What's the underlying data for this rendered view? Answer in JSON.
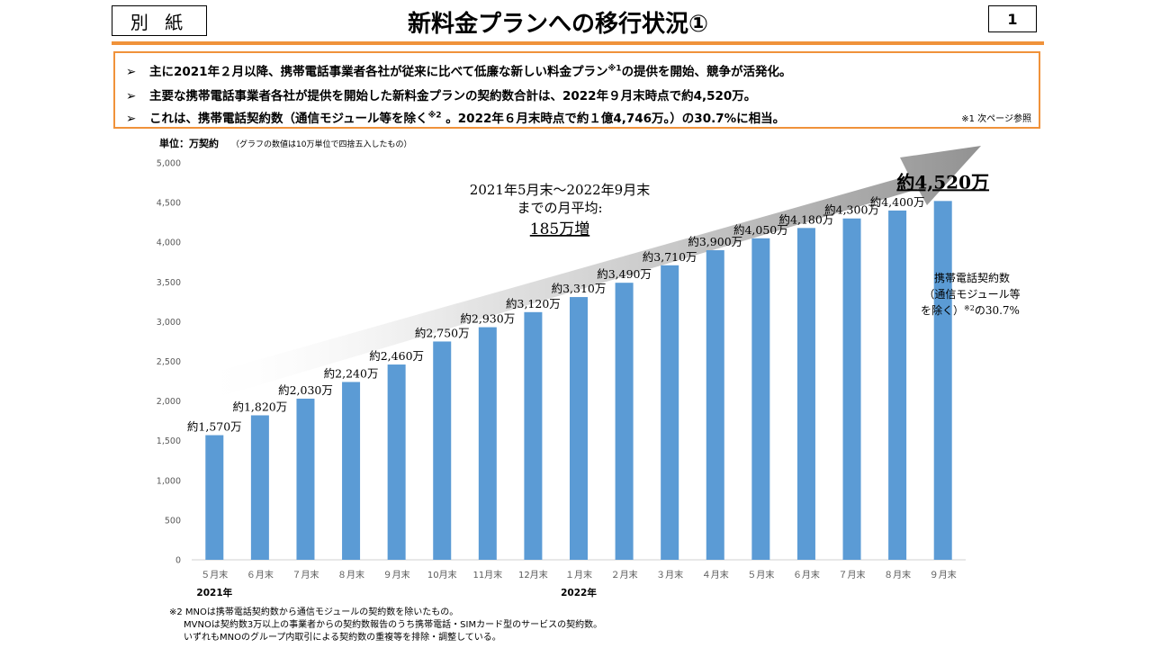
{
  "header": {
    "tag": "別 紙",
    "title": "新料金プランへの移行状況①",
    "page_number": "1"
  },
  "bullets": [
    {
      "text": "主に2021年２月以降、携帯電話事業者各社が従来に比べて低廉な新しい料金プラン",
      "sup": "※1",
      "tail": "の提供を開始、競争が活発化。"
    },
    {
      "text": "主要な携帯電話事業者各社が提供を開始した新料金プランの契約数合計は、2022年９月末時点で約4,520万。",
      "sup": "",
      "tail": ""
    },
    {
      "text": "これは、携帯電話契約数（通信モジュール等を除く",
      "sup": "※2",
      "tail": " 。2022年６月末時点で約１億4,746万。）の30.7%に相当。"
    }
  ],
  "bullet_marker": "➢",
  "note_ref": "※1  次ページ参照",
  "chart_data": {
    "type": "bar",
    "unit_label": "単位：万契約",
    "unit_note": "（グラフの数値は10万単位で四捨五入したもの）",
    "categories": [
      "５月末",
      "６月末",
      "７月末",
      "８月末",
      "９月末",
      "10月末",
      "11月末",
      "12月末",
      "１月末",
      "２月末",
      "３月末",
      "４月末",
      "５月末",
      "６月末",
      "７月末",
      "８月末",
      "９月末"
    ],
    "values": [
      1570,
      1820,
      2030,
      2240,
      2460,
      2750,
      2930,
      3120,
      3310,
      3490,
      3710,
      3900,
      4050,
      4180,
      4300,
      4400,
      4520
    ],
    "data_labels": [
      "約1,570万",
      "約1,820万",
      "約2,030万",
      "約2,240万",
      "約2,460万",
      "約2,750万",
      "約2,930万",
      "約3,120万",
      "約3,310万",
      "約3,490万",
      "約3,710万",
      "約3,900万",
      "約4,050万",
      "約4,180万",
      "約4,300万",
      "約4,400万",
      "約4,520万"
    ],
    "ylim": [
      0,
      5000
    ],
    "yticks": [
      0,
      500,
      1000,
      1500,
      2000,
      2500,
      3000,
      3500,
      4000,
      4500,
      5000
    ],
    "ytick_labels": [
      "0",
      "500",
      "1,000",
      "1,500",
      "2,000",
      "2,500",
      "3,000",
      "3,500",
      "4,000",
      "4,500",
      "5,000"
    ],
    "year_labels": [
      {
        "text": "2021年",
        "index": 0
      },
      {
        "text": "2022年",
        "index": 8
      }
    ],
    "grid": false,
    "bar_color": "#5b9bd5",
    "arrow_annotation": {
      "line1": "2021年5月末〜2022年9月末",
      "line2": "までの月平均:",
      "line3": "185万増"
    },
    "right_annotation": {
      "line1": "携帯電話契約数",
      "line2": "（通信モジュール等",
      "line3": "を除く）",
      "sup": "※2",
      "tail": "の30.7%"
    }
  },
  "footnotes": [
    "※2  MNOは携帯電話契約数から通信モジュールの契約数を除いたもの。",
    "MVNOは契約数3万以上の事業者からの契約数報告のうち携帯電話・SIMカード型のサービスの契約数。",
    "いずれもMNOのグループ内取引による契約数の重複等を排除・調整している。"
  ],
  "colors": {
    "accent": "#f0923a",
    "bar": "#5b9bd5"
  }
}
